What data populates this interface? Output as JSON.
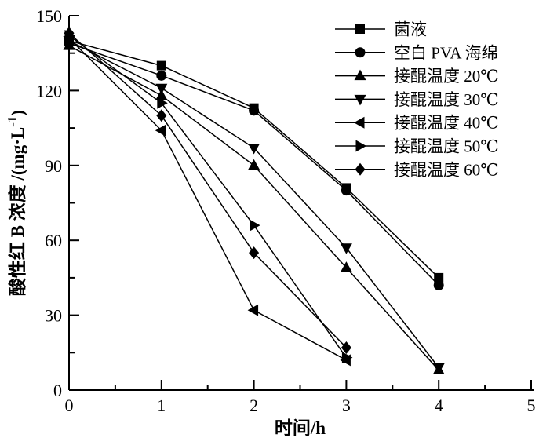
{
  "figure": {
    "background": "#ffffff",
    "foreground": "#000000"
  },
  "chart_data": {
    "type": "line",
    "title": "",
    "xlabel": "时间/h",
    "ylabel": "酸性红 B 浓度 /(mg·L⁻¹)",
    "ylabel_parts": {
      "pre": "酸性红 B 浓度 /(mg·L",
      "sup": "-1",
      "post": ")"
    },
    "xlim": [
      0,
      5
    ],
    "ylim": [
      0,
      150
    ],
    "x_tick_labels": [
      "0",
      "1",
      "2",
      "3",
      "4",
      "5"
    ],
    "y_tick_labels": [
      "0",
      "30",
      "60",
      "90",
      "120",
      "150"
    ],
    "x_major_ticks": [
      0,
      1,
      2,
      3,
      4,
      5
    ],
    "y_major_ticks": [
      0,
      30,
      60,
      90,
      120,
      150
    ],
    "x_minor_ticks": [
      0.5,
      1.5,
      2.5,
      3.5,
      4.5
    ],
    "y_minor_ticks": [
      15,
      45,
      75,
      105,
      135
    ],
    "grid": "off",
    "legend_position": "top-right-inside",
    "line_color": "#000000",
    "series": [
      {
        "name": "菌液",
        "marker": "square",
        "x": [
          0,
          1,
          2,
          3,
          4
        ],
        "y": [
          140,
          130,
          113,
          81,
          45
        ]
      },
      {
        "name": "空白 PVA 海绵",
        "marker": "circle",
        "x": [
          0,
          1,
          2,
          3,
          4
        ],
        "y": [
          139,
          126,
          112,
          80,
          42
        ]
      },
      {
        "name": "接醌温度 20℃",
        "marker": "triangle-up",
        "x": [
          0,
          1,
          2,
          3,
          4
        ],
        "y": [
          138,
          118,
          90,
          49,
          8
        ]
      },
      {
        "name": "接醌温度 30℃",
        "marker": "triangle-down",
        "x": [
          0,
          1,
          2,
          3,
          4
        ],
        "y": [
          140,
          121,
          97,
          57,
          9
        ]
      },
      {
        "name": "接醌温度 40℃",
        "marker": "triangle-left",
        "x": [
          0,
          1,
          2,
          3
        ],
        "y": [
          141,
          104,
          32,
          12
        ]
      },
      {
        "name": "接醌温度 50℃",
        "marker": "triangle-right",
        "x": [
          0,
          1,
          2,
          3
        ],
        "y": [
          142,
          115,
          66,
          13
        ]
      },
      {
        "name": "接醌温度 60℃",
        "marker": "diamond",
        "x": [
          0,
          1,
          2,
          3
        ],
        "y": [
          143,
          110,
          55,
          17
        ]
      }
    ]
  }
}
